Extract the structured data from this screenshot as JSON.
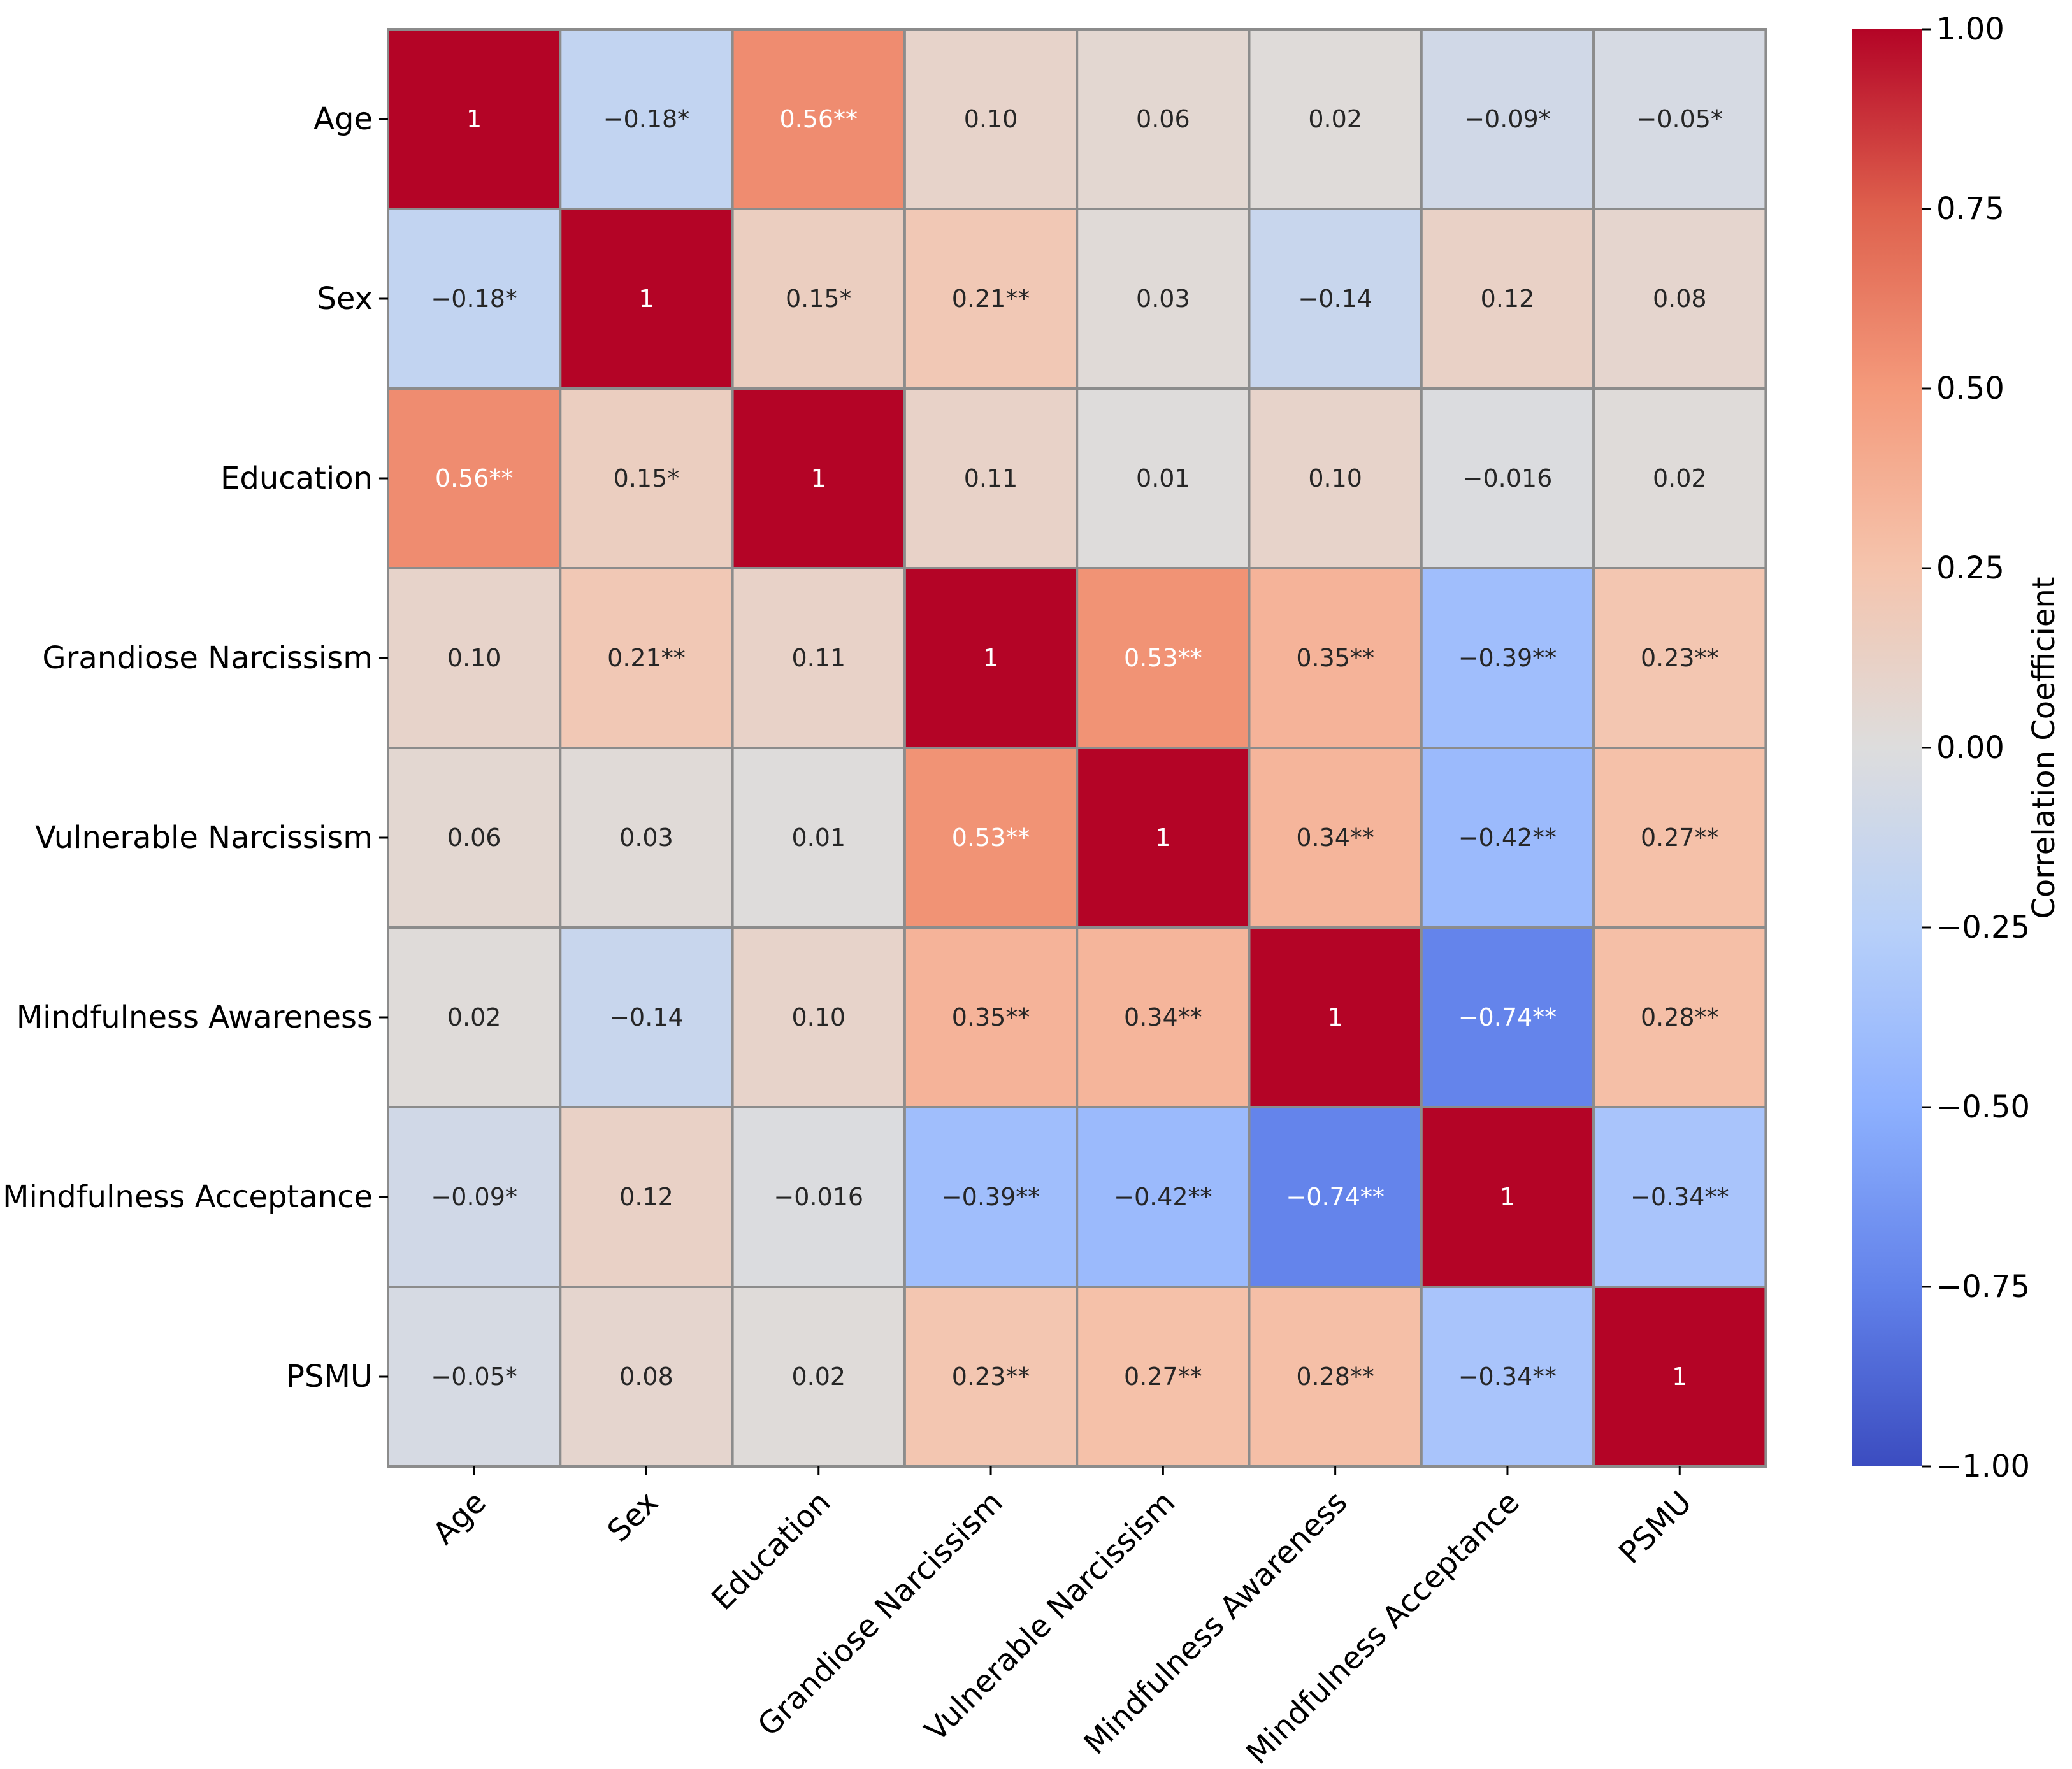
{
  "chart_data": {
    "type": "heatmap",
    "title": "",
    "colormap": "coolwarm",
    "labels": [
      "Age",
      "Sex",
      "Education",
      "Grandiose Narcissism",
      "Vulnerable Narcissism",
      "Mindfulness Awareness",
      "Mindfulness Acceptance",
      "PSMU"
    ],
    "values": [
      [
        1.0,
        -0.18,
        0.56,
        0.1,
        0.06,
        0.02,
        -0.09,
        -0.05
      ],
      [
        -0.18,
        1.0,
        0.15,
        0.21,
        0.03,
        -0.14,
        0.12,
        0.08
      ],
      [
        0.56,
        0.15,
        1.0,
        0.11,
        0.01,
        0.1,
        -0.016,
        0.02
      ],
      [
        0.1,
        0.21,
        0.11,
        1.0,
        0.53,
        0.35,
        -0.39,
        0.23
      ],
      [
        0.06,
        0.03,
        0.01,
        0.53,
        1.0,
        0.34,
        -0.42,
        0.27
      ],
      [
        0.02,
        -0.14,
        0.1,
        0.35,
        0.34,
        1.0,
        -0.74,
        0.28
      ],
      [
        -0.09,
        0.12,
        -0.016,
        -0.39,
        -0.42,
        -0.74,
        1.0,
        -0.34
      ],
      [
        -0.05,
        0.08,
        0.02,
        0.23,
        0.27,
        0.28,
        -0.34,
        1.0
      ]
    ],
    "annotations": [
      [
        "1",
        "−0.18*",
        "0.56**",
        "0.10",
        "0.06",
        "0.02",
        "−0.09*",
        "−0.05*"
      ],
      [
        "−0.18*",
        "1",
        "0.15*",
        "0.21**",
        "0.03",
        "−0.14",
        "0.12",
        "0.08"
      ],
      [
        "0.56**",
        "0.15*",
        "1",
        "0.11",
        "0.01",
        "0.10",
        "−0.016",
        "0.02"
      ],
      [
        "0.10",
        "0.21**",
        "0.11",
        "1",
        "0.53**",
        "0.35**",
        "−0.39**",
        "0.23**"
      ],
      [
        "0.06",
        "0.03",
        "0.01",
        "0.53**",
        "1",
        "0.34**",
        "−0.42**",
        "0.27**"
      ],
      [
        "0.02",
        "−0.14",
        "0.10",
        "0.35**",
        "0.34**",
        "1",
        "−0.74**",
        "0.28**"
      ],
      [
        "−0.09*",
        "0.12",
        "−0.016",
        "−0.39**",
        "−0.42**",
        "−0.74**",
        "1",
        "−0.34**"
      ],
      [
        "−0.05*",
        "0.08",
        "0.02",
        "0.23**",
        "0.27**",
        "0.28**",
        "−0.34**",
        "1"
      ]
    ],
    "colorbar": {
      "label": "Correlation Coefficient",
      "range": [
        -1.0,
        1.0
      ],
      "ticks": [
        1.0,
        0.75,
        0.5,
        0.25,
        0.0,
        -0.25,
        -0.5,
        -0.75,
        -1.0
      ],
      "tick_labels": [
        "1.00",
        "0.75",
        "0.50",
        "0.25",
        "0.00",
        "−0.25",
        "−0.50",
        "−0.75",
        "−1.00"
      ]
    },
    "grid": true
  }
}
